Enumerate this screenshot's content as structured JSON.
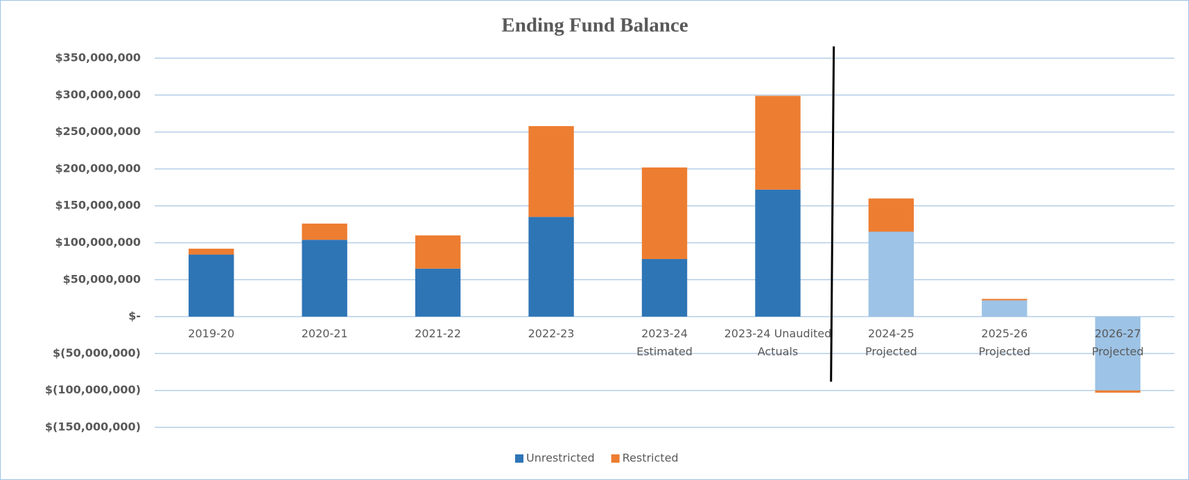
{
  "chart_data": {
    "type": "stacked_bar",
    "title": "Ending Fund Balance",
    "categories": [
      "2019-20",
      "2020-21",
      "2021-22",
      "2022-23",
      "2023-24\nEstimated",
      "2023-24 Unaudited\nActuals",
      "2024-25\nProjected",
      "2025-26\nProjected",
      "2026-27\nProjected"
    ],
    "series": [
      {
        "name": "Unrestricted",
        "color": "#2e75b6",
        "colors": [
          "#2e75b6",
          "#2e75b6",
          "#2e75b6",
          "#2e75b6",
          "#2e75b6",
          "#2e75b6",
          "#9dc3e6",
          "#9dc3e6",
          "#9dc3e6"
        ],
        "values": [
          84000000,
          104000000,
          65000000,
          135000000,
          78000000,
          172000000,
          115000000,
          22000000,
          -100000000
        ]
      },
      {
        "name": "Restricted",
        "color": "#ed7d31",
        "values": [
          8000000,
          22000000,
          45000000,
          123000000,
          124000000,
          127000000,
          45000000,
          2000000,
          -3000000
        ]
      }
    ],
    "ylim": [
      -150000000,
      350000000
    ],
    "yticks": [
      {
        "value": -150000000,
        "label": "$(150,000,000)"
      },
      {
        "value": -100000000,
        "label": "$(100,000,000)"
      },
      {
        "value": -50000000,
        "label": "$(50,000,000)"
      },
      {
        "value": 0,
        "label": "$-"
      },
      {
        "value": 50000000,
        "label": "$50,000,000"
      },
      {
        "value": 100000000,
        "label": "$100,000,000"
      },
      {
        "value": 150000000,
        "label": "$150,000,000"
      },
      {
        "value": 200000000,
        "label": "$200,000,000"
      },
      {
        "value": 250000000,
        "label": "$250,000,000"
      },
      {
        "value": 300000000,
        "label": "$300,000,000"
      },
      {
        "value": 350000000,
        "label": "$350,000,000"
      }
    ],
    "grid": true,
    "legend": "bottom"
  }
}
